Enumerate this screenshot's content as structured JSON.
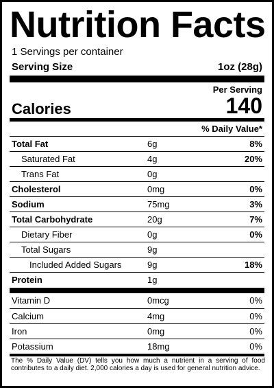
{
  "header": {
    "title": "Nutrition Facts",
    "servings": "1 Servings per container",
    "serving_size_label": "Serving Size",
    "serving_size": "1oz (28g)"
  },
  "calories": {
    "per_serving": "Per Serving",
    "label": "Calories",
    "value": "140"
  },
  "daily_value_header": "% Daily Value*",
  "nutrients": [
    {
      "name": "Total Fat",
      "amount": "6g",
      "dv": "8%"
    },
    {
      "name": "Saturated Fat",
      "amount": "4g",
      "dv": "20%"
    },
    {
      "name": "Trans Fat",
      "amount": "0g"
    },
    {
      "name": "Cholesterol",
      "amount": "0mg",
      "dv": "0%"
    },
    {
      "name": "Sodium",
      "amount": "75mg",
      "dv": "3%"
    },
    {
      "name": "Total Carbohydrate",
      "amount": "20g",
      "dv": "7%"
    },
    {
      "name": "Dietary Fiber",
      "amount": "0g",
      "dv": "0%"
    },
    {
      "name": "Total Sugars",
      "amount": "9g"
    },
    {
      "name": "Included Added Sugars",
      "amount": "9g",
      "dv": "18%"
    },
    {
      "name": "Protein",
      "amount": "1g"
    }
  ],
  "vitamins": [
    {
      "name": "Vitamin D",
      "amount": "0mcg",
      "dv": "0%"
    },
    {
      "name": "Calcium",
      "amount": "4mg",
      "dv": "0%"
    },
    {
      "name": "Iron",
      "amount": "0mg",
      "dv": "0%"
    },
    {
      "name": "Potassium",
      "amount": "18mg",
      "dv": "0%"
    }
  ],
  "footnote": "The % Daily Value (DV) tells you how much a nutrient in a serving of food contributes to a daily diet. 2,000 calories a day is used for general nutrition advice."
}
